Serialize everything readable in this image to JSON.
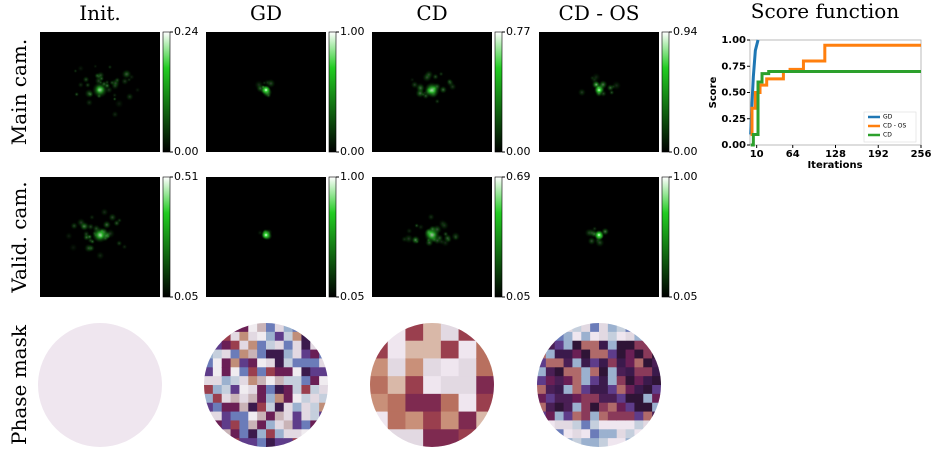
{
  "columns": [
    "Init.",
    "GD",
    "CD",
    "CD - OS"
  ],
  "rows": [
    "Main cam.",
    "Valid. cam.",
    "Phase mask"
  ],
  "colorbars": [
    [
      [
        "0.24",
        "0.00"
      ],
      [
        "1.00",
        "0.00"
      ],
      [
        "0.77",
        "0.00"
      ],
      [
        "0.94",
        "0.00"
      ]
    ],
    [
      [
        "0.51",
        "0.05"
      ],
      [
        "1.00",
        "0.05"
      ],
      [
        "0.69",
        "0.05"
      ],
      [
        "1.00",
        "0.05"
      ]
    ]
  ],
  "chart_data": {
    "type": "line",
    "title": "Score function",
    "x_label": "Iterations",
    "y_label": "Score",
    "xlim": [
      0,
      256
    ],
    "ylim": [
      0,
      1
    ],
    "xticks": [
      10,
      64,
      128,
      192,
      256
    ],
    "yticks": [
      {
        "value": 0,
        "label": "0.00"
      },
      {
        "value": 0.25,
        "label": "0.25"
      },
      {
        "value": 0.5,
        "label": "0.50"
      },
      {
        "value": 0.75,
        "label": "0.75"
      },
      {
        "value": 1,
        "label": "1.00"
      }
    ],
    "legend": "lower right",
    "series": [
      {
        "name": "GD",
        "color": "#1f77b4",
        "x": [
          1,
          3,
          5,
          8,
          12
        ],
        "values": [
          0.1,
          0.4,
          0.65,
          0.9,
          1.0
        ]
      },
      {
        "name": "CD - OS",
        "color": "#ff7f0e",
        "x": [
          1,
          3,
          3,
          8,
          8,
          15,
          15,
          25,
          25,
          50,
          50,
          60,
          60,
          80,
          80,
          112,
          112,
          256
        ],
        "values": [
          0.1,
          0.1,
          0.35,
          0.35,
          0.5,
          0.5,
          0.57,
          0.57,
          0.63,
          0.63,
          0.7,
          0.7,
          0.72,
          0.72,
          0.8,
          0.8,
          0.95,
          0.95
        ]
      },
      {
        "name": "CD",
        "color": "#2ca02c",
        "x": [
          1,
          5,
          5,
          12,
          12,
          18,
          18,
          28,
          28,
          256
        ],
        "values": [
          0.0,
          0.0,
          0.1,
          0.1,
          0.6,
          0.6,
          0.68,
          0.68,
          0.7,
          0.7
        ]
      }
    ]
  }
}
